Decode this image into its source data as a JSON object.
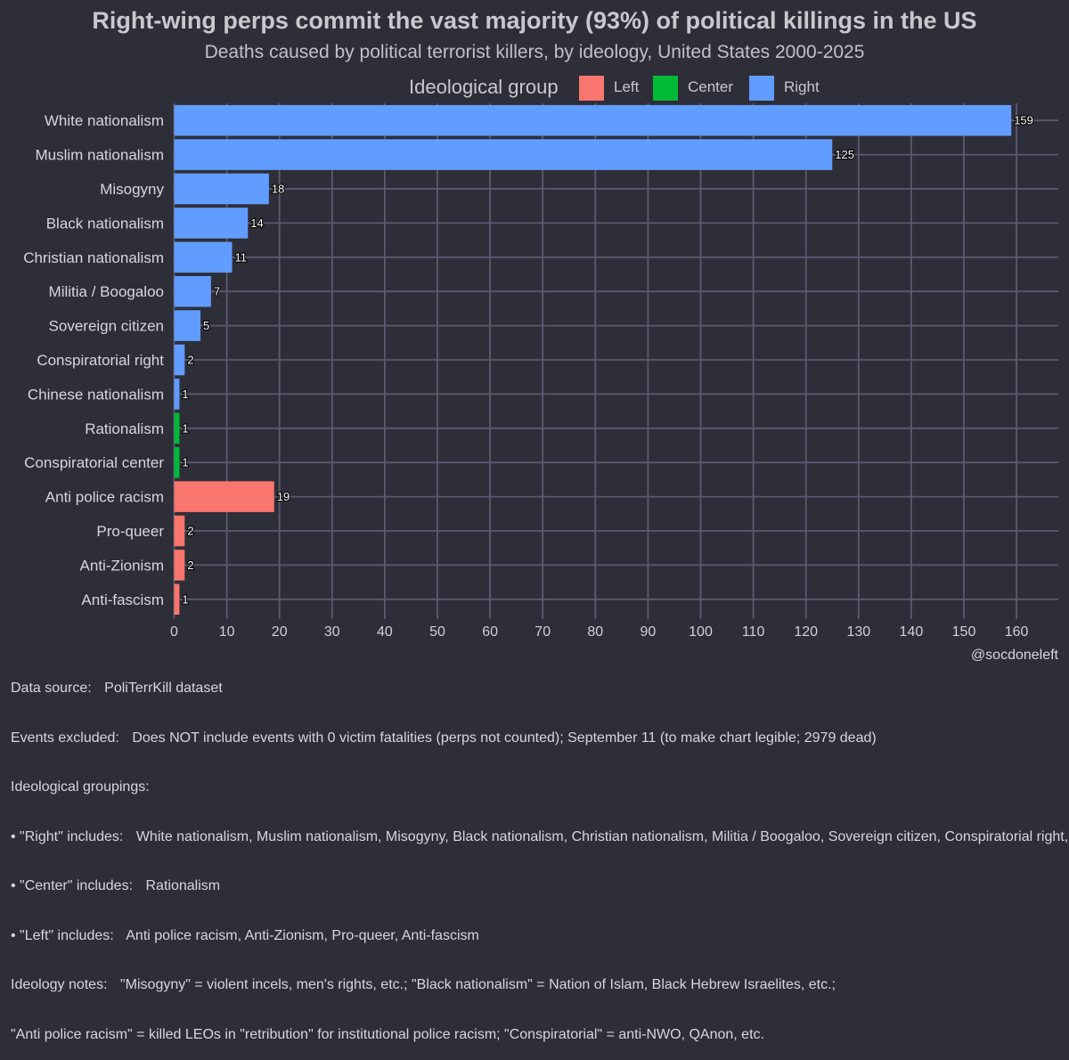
{
  "chart_data": {
    "type": "bar",
    "orientation": "horizontal",
    "title": "Right-wing perps commit the vast majority (93%) of political killings in the US",
    "subtitle": "Deaths caused by political terrorist killers, by ideology, United States 2000-2025",
    "legend_title": "Ideological group",
    "legend": [
      {
        "name": "Left",
        "color": "#f8766d"
      },
      {
        "name": "Center",
        "color": "#00ba38"
      },
      {
        "name": "Right",
        "color": "#619cff"
      }
    ],
    "categories": [
      "White nationalism",
      "Muslim nationalism",
      "Misogyny",
      "Black nationalism",
      "Christian nationalism",
      "Militia / Boogaloo",
      "Sovereign citizen",
      "Conspiratorial right",
      "Chinese nationalism",
      "Rationalism",
      "Conspiratorial center",
      "Anti police racism",
      "Pro-queer",
      "Anti-Zionism",
      "Anti-fascism"
    ],
    "values": [
      159,
      125,
      18,
      14,
      11,
      7,
      5,
      2,
      1,
      1,
      1,
      19,
      2,
      2,
      1
    ],
    "groups": [
      "Right",
      "Right",
      "Right",
      "Right",
      "Right",
      "Right",
      "Right",
      "Right",
      "Right",
      "Center",
      "Center",
      "Left",
      "Left",
      "Left",
      "Left"
    ],
    "xticks": [
      0,
      10,
      20,
      30,
      40,
      50,
      60,
      70,
      80,
      90,
      100,
      110,
      120,
      130,
      140,
      150,
      160
    ],
    "xlim": [
      0,
      168
    ],
    "xlabel": "",
    "ylabel": "",
    "grid": true
  },
  "footer": {
    "credit": "@socdoneleft",
    "lines": [
      {
        "label": "Data source:",
        "text": "PoliTerrKill dataset"
      },
      {
        "label": "Events excluded:",
        "text": "Does NOT include events with 0 victim fatalities (perps not counted); September 11 (to make chart legible; 2979 dead)"
      },
      {
        "label": "Ideological groupings:",
        "text": ""
      },
      {
        "label": "• \"Right\" includes:",
        "text": "White nationalism, Muslim nationalism, Misogyny, Black nationalism, Christian nationalism, Militia / Boogaloo, Sovereign citizen, Conspiratorial right, Chinese nationalism"
      },
      {
        "label": "• \"Center\" includes:",
        "text": "Rationalism"
      },
      {
        "label": "• \"Left\" includes:",
        "text": "Anti police racism, Anti-Zionism, Pro-queer, Anti-fascism"
      },
      {
        "label": "Ideology notes:",
        "text": "\"Misogyny\" = violent incels, men's rights, etc.; \"Black nationalism\" = Nation of Islam, Black Hebrew Israelites, etc.;"
      },
      {
        "label": "",
        "text": "\"Anti police racism\" = killed LEOs in \"retribution\" for institutional police racism; \"Conspiratorial\" = anti-NWO, QAnon, etc."
      }
    ]
  }
}
